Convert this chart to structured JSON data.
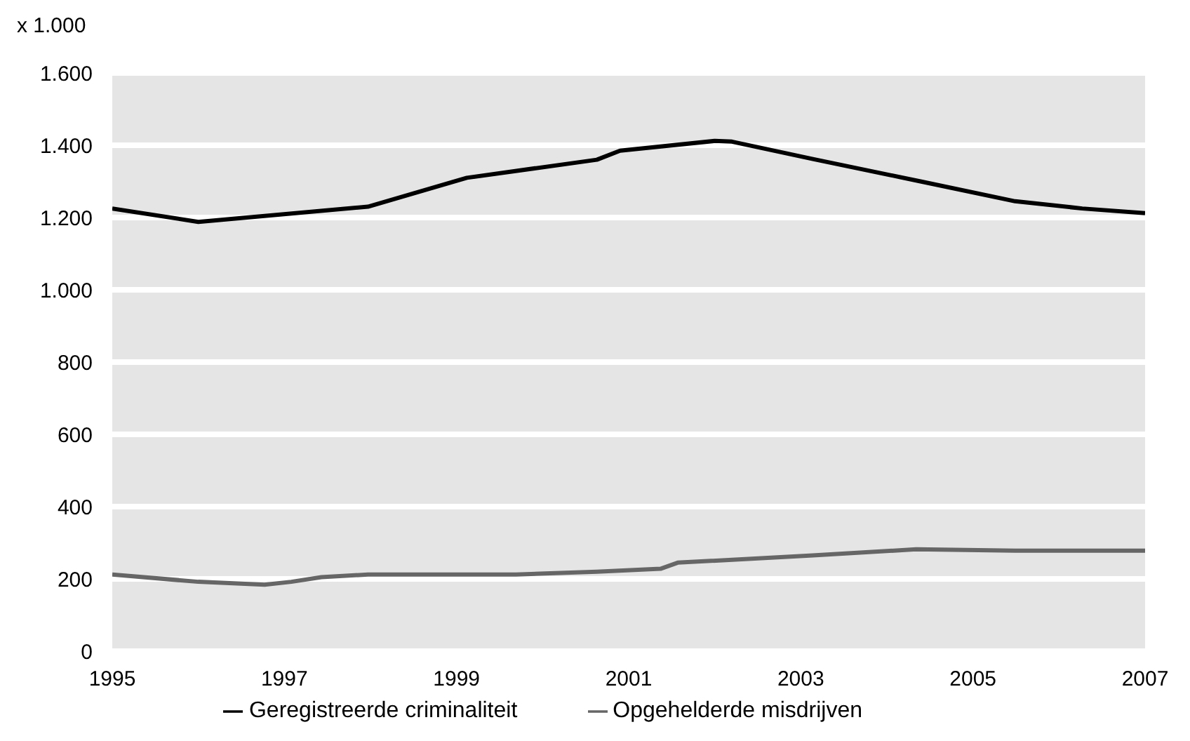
{
  "chart_data": {
    "type": "line",
    "ylabel": "x 1.000",
    "xlim": [
      1995,
      2007
    ],
    "xticks": [
      1995,
      1997,
      1999,
      2001,
      2003,
      2005,
      2007
    ],
    "ylim": [
      0,
      1600
    ],
    "yticks": [
      0,
      200,
      400,
      600,
      800,
      {
        "value": 1000,
        "label": "1.000"
      },
      {
        "value": 1200,
        "label": "1.200"
      },
      {
        "value": 1400,
        "label": "1.400"
      },
      {
        "value": 1600,
        "label": "1.600"
      }
    ],
    "grid": "y",
    "legend": "bottom",
    "marker": "none",
    "line_style": "solid",
    "series": [
      {
        "name": "Geregistreerde criminaliteit",
        "color": "#000000",
        "x": [
          1995,
          1996,
          1997.97,
          1999.12,
          2000.63,
          2000.9,
          2002.0,
          2002.2,
          2003.14,
          2004.39,
          2005.49,
          2006.27,
          2007
        ],
        "values": [
          1225,
          1188,
          1230,
          1310,
          1360,
          1385,
          1412,
          1410,
          1362,
          1300,
          1245,
          1225,
          1212
        ]
      },
      {
        "name": "Opgehelderde misdrijven",
        "color": "#666666",
        "x": [
          1995,
          1996,
          1996.77,
          1997.08,
          1997.43,
          1997.97,
          1999.69,
          2000.63,
          2001.37,
          2001.57,
          2003.14,
          2004.34,
          2005.49,
          2007
        ],
        "values": [
          212,
          192,
          184,
          192,
          205,
          212,
          212,
          220,
          228,
          245,
          265,
          282,
          278,
          278
        ]
      }
    ]
  }
}
